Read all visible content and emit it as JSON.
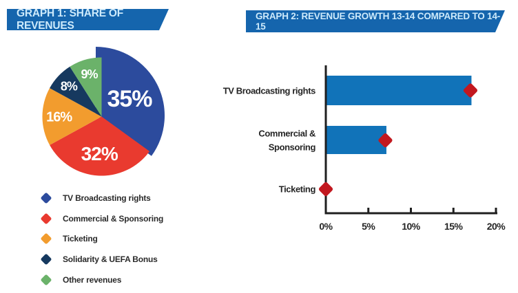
{
  "colors": {
    "banner_bg": "#1565ad",
    "banner_text": "#cdeafb",
    "axis": "#1f1f1f",
    "pie_label_text": "#ffffff"
  },
  "graph1": {
    "banner": "GRAPH 1: SHARE OF REVENUES"
  },
  "graph2": {
    "banner": "GRAPH 2: REVENUE GROWTH 13-14 COMPARED TO 14-15"
  },
  "chart_data": [
    {
      "type": "pie",
      "title": "GRAPH 1: SHARE OF REVENUES",
      "start_angle_deg": 0,
      "direction": "clockwise",
      "legend_position": "bottom-left",
      "slices": [
        {
          "label": "TV Broadcasting rights",
          "value": 35,
          "display": "35%",
          "color": "#2c4b9d",
          "exploded": true
        },
        {
          "label": "Commercial & Sponsoring",
          "value": 32,
          "display": "32%",
          "color": "#e93a2f",
          "exploded": false
        },
        {
          "label": "Ticketing",
          "value": 16,
          "display": "16%",
          "color": "#f29c2e",
          "exploded": false
        },
        {
          "label": "Solidarity & UEFA Bonus",
          "value": 8,
          "display": "8%",
          "color": "#16395f",
          "exploded": false
        },
        {
          "label": "Other revenues",
          "value": 9,
          "display": "9%",
          "color": "#6bb26a",
          "exploded": false
        }
      ]
    },
    {
      "type": "bar",
      "orientation": "horizontal",
      "title": "GRAPH 2: REVENUE GROWTH 13-14 COMPARED TO 14-15",
      "categories": [
        "TV Broadcasting rights",
        "Commercial & Sponsoring",
        "Ticketing"
      ],
      "category_display": [
        "TV Broadcasting rights",
        "Commercial &\nSponsoring",
        "Ticketing"
      ],
      "bar_values_pct": [
        17,
        7,
        0
      ],
      "marker_values_pct": [
        17,
        7,
        0
      ],
      "bar_color": "#1173b9",
      "marker_color": "#c2181f",
      "marker_shape": "diamond",
      "x_ticks": [
        "0%",
        "5%",
        "10%",
        "15%",
        "20%"
      ],
      "x_tick_values": [
        0,
        5,
        10,
        15,
        20
      ],
      "xlim": [
        0,
        20
      ],
      "grid": false,
      "legend": "none"
    }
  ]
}
